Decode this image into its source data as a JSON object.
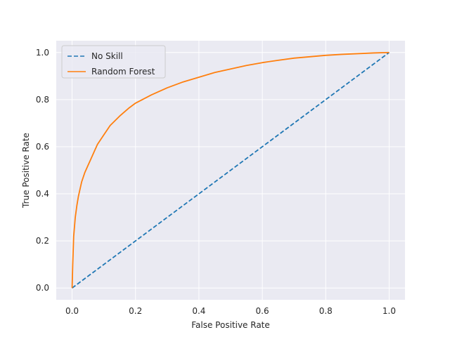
{
  "chart_data": {
    "type": "line",
    "title": "",
    "xlabel": "False Positive Rate",
    "ylabel": "True Positive Rate",
    "xlim": [
      -0.05,
      1.05
    ],
    "ylim": [
      -0.05,
      1.05
    ],
    "xticks": [
      0.0,
      0.2,
      0.4,
      0.6,
      0.8,
      1.0
    ],
    "xtick_labels": [
      "0.0",
      "0.2",
      "0.4",
      "0.6",
      "0.8",
      "1.0"
    ],
    "yticks": [
      0.0,
      0.2,
      0.4,
      0.6,
      0.8,
      1.0
    ],
    "ytick_labels": [
      "0.0",
      "0.2",
      "0.4",
      "0.6",
      "0.8",
      "1.0"
    ],
    "grid": true,
    "legend_position": "top-left",
    "series": [
      {
        "name": "No Skill",
        "color": "#1f77b4",
        "style": "dashed",
        "x": [
          0.0,
          1.0
        ],
        "y": [
          0.0,
          1.0
        ]
      },
      {
        "name": "Random Forest",
        "color": "#ff7f0e",
        "style": "solid",
        "x": [
          0.0,
          0.002,
          0.005,
          0.01,
          0.015,
          0.02,
          0.03,
          0.04,
          0.05,
          0.06,
          0.07,
          0.08,
          0.1,
          0.12,
          0.15,
          0.18,
          0.2,
          0.25,
          0.3,
          0.35,
          0.4,
          0.45,
          0.5,
          0.55,
          0.6,
          0.65,
          0.7,
          0.75,
          0.8,
          0.85,
          0.9,
          0.95,
          1.0
        ],
        "y": [
          0.0,
          0.1,
          0.22,
          0.3,
          0.35,
          0.39,
          0.45,
          0.49,
          0.52,
          0.55,
          0.58,
          0.61,
          0.65,
          0.69,
          0.73,
          0.765,
          0.785,
          0.82,
          0.85,
          0.875,
          0.895,
          0.915,
          0.93,
          0.945,
          0.957,
          0.967,
          0.976,
          0.982,
          0.988,
          0.992,
          0.995,
          0.998,
          1.0
        ]
      }
    ]
  }
}
